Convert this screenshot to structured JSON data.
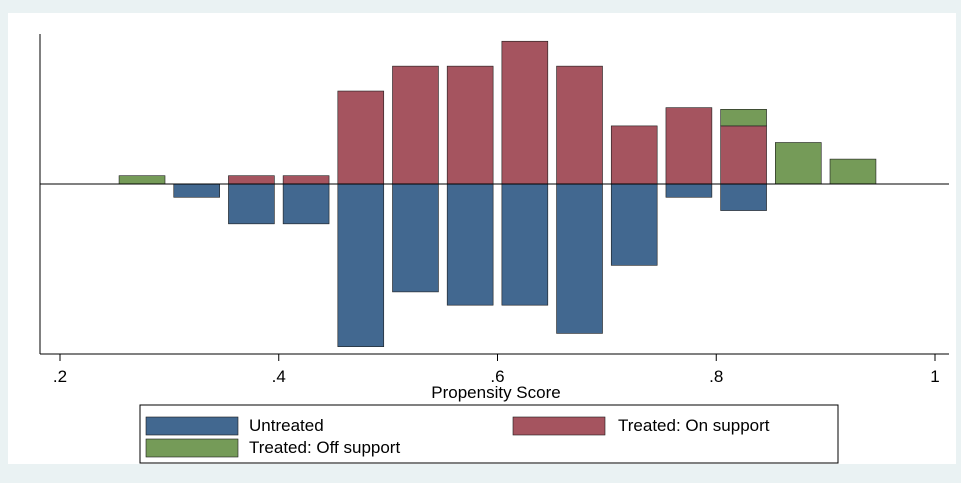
{
  "chart_data": {
    "type": "bar",
    "title": "",
    "xlabel": "Propensity Score",
    "ylabel": "",
    "xlim": [
      0.2,
      1.0
    ],
    "ylim": [
      -1.0,
      1.0
    ],
    "x_ticks": [
      0.2,
      0.4,
      0.6,
      0.8,
      1.0
    ],
    "x_tick_labels": [
      ".2",
      ".4",
      ".6",
      ".8",
      "1"
    ],
    "grid": false,
    "legend": {
      "position": "bottom",
      "columns": 2
    },
    "series": [
      {
        "name": "Untreated",
        "color": "#426890",
        "bins": [
          {
            "x": 0.325,
            "value": -0.08
          },
          {
            "x": 0.375,
            "value": -0.24
          },
          {
            "x": 0.425,
            "value": -0.24
          },
          {
            "x": 0.475,
            "value": -0.98
          },
          {
            "x": 0.525,
            "value": -0.65
          },
          {
            "x": 0.575,
            "value": -0.73
          },
          {
            "x": 0.625,
            "value": -0.73
          },
          {
            "x": 0.675,
            "value": -0.9
          },
          {
            "x": 0.725,
            "value": -0.49
          },
          {
            "x": 0.775,
            "value": -0.08
          },
          {
            "x": 0.825,
            "value": -0.16
          }
        ]
      },
      {
        "name": "Treated: On support",
        "color": "#a5545f",
        "bins": [
          {
            "x": 0.375,
            "value": 0.05
          },
          {
            "x": 0.425,
            "value": 0.05
          },
          {
            "x": 0.475,
            "value": 0.56
          },
          {
            "x": 0.525,
            "value": 0.71
          },
          {
            "x": 0.575,
            "value": 0.71
          },
          {
            "x": 0.625,
            "value": 0.86
          },
          {
            "x": 0.675,
            "value": 0.71
          },
          {
            "x": 0.725,
            "value": 0.35
          },
          {
            "x": 0.775,
            "value": 0.46
          },
          {
            "x": 0.825,
            "value": 0.35
          }
        ]
      },
      {
        "name": "Treated: Off support",
        "color": "#759b58",
        "bins": [
          {
            "x": 0.275,
            "value": 0.05
          },
          {
            "x": 0.825,
            "value": 0.1,
            "stacked_on": 0.35
          },
          {
            "x": 0.875,
            "value": 0.25
          },
          {
            "x": 0.925,
            "value": 0.15
          }
        ]
      }
    ]
  }
}
